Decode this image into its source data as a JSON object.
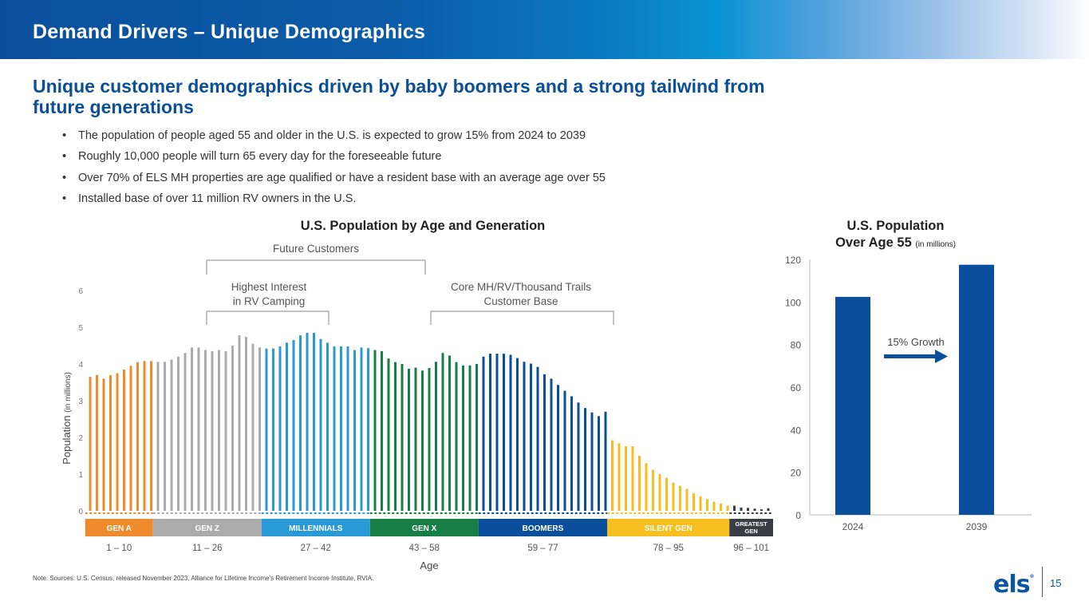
{
  "header": {
    "title": "Demand Drivers – Unique Demographics"
  },
  "subtitle": "Unique customer demographics driven by baby boomers and a strong tailwind from future generations",
  "bullets": [
    "The population of people aged 55 and older in the U.S. is expected to grow 15% from 2024 to 2039",
    "Roughly 10,000 people will turn 65 every day for the foreseeable future",
    "Over 70% of ELS MH properties are age qualified or have a resident base with an average age over 55",
    "Installed base of over 11 million RV owners in the U.S."
  ],
  "note": "Note: Sources: U.S. Census, released November 2023, Alliance for Lifetime Income's Retirement Income Institute, RVIA.",
  "footer": {
    "logo": "els",
    "logo_mark": "®",
    "page_number": "15"
  },
  "chart_data": [
    {
      "type": "bar",
      "title": "U.S. Population by Age and Generation",
      "xlabel": "Age",
      "ylabel": "Population",
      "ylabel_unit": "(in millions)",
      "ylim": [
        0,
        6
      ],
      "yticks": [
        "0",
        "1",
        "2",
        "3",
        "4",
        "5",
        "6"
      ],
      "grid": false,
      "annotations": [
        {
          "label": "Future Customers",
          "from_age": 19,
          "to_age": 51
        },
        {
          "label_line1": "Highest Interest",
          "label_line2": "in RV Camping",
          "from_age": 19,
          "to_age": 37
        },
        {
          "label_line1": "Core MH/RV/Thousand Trails",
          "label_line2": "Customer Base",
          "from_age": 52,
          "to_age": 78
        }
      ],
      "generations": [
        {
          "name": "GEN A",
          "range": "1 – 10",
          "start": 1,
          "end": 10,
          "color": "#ef8b2c",
          "text_color": "#ffffff"
        },
        {
          "name": "GEN Z",
          "range": "11 – 26",
          "start": 11,
          "end": 26,
          "color": "#ababab",
          "text_color": "#ffffff"
        },
        {
          "name": "MILLENNIALS",
          "range": "27 – 42",
          "start": 27,
          "end": 42,
          "color": "#2a9ad6",
          "text_color": "#ffffff"
        },
        {
          "name": "GEN X",
          "range": "43 – 58",
          "start": 43,
          "end": 58,
          "color": "#177f45",
          "text_color": "#ffffff"
        },
        {
          "name": "BOOMERS",
          "range": "59 – 77",
          "start": 59,
          "end": 77,
          "color": "#0b4f9c",
          "text_color": "#ffffff"
        },
        {
          "name": "SILENT GEN",
          "range": "78 – 95",
          "start": 78,
          "end": 95,
          "color": "#f6be1e",
          "text_color": "#ffffff"
        },
        {
          "name": "GREATEST GEN",
          "name_line1": "GREATEST",
          "name_line2": "GEN",
          "range": "96 – 101",
          "start": 96,
          "end": 101,
          "color": "#3a3d46",
          "text_color": "#ffffff"
        }
      ],
      "ages": [
        1,
        2,
        3,
        4,
        5,
        6,
        7,
        8,
        9,
        10,
        11,
        12,
        13,
        14,
        15,
        16,
        17,
        18,
        19,
        20,
        21,
        22,
        23,
        24,
        25,
        26,
        27,
        28,
        29,
        30,
        31,
        32,
        33,
        34,
        35,
        36,
        37,
        38,
        39,
        40,
        41,
        42,
        43,
        44,
        45,
        46,
        47,
        48,
        49,
        50,
        51,
        52,
        53,
        54,
        55,
        56,
        57,
        58,
        59,
        60,
        61,
        62,
        63,
        64,
        65,
        66,
        67,
        68,
        69,
        70,
        71,
        72,
        73,
        74,
        75,
        76,
        77,
        78,
        79,
        80,
        81,
        82,
        83,
        84,
        85,
        86,
        87,
        88,
        89,
        90,
        91,
        92,
        93,
        94,
        95,
        96,
        97,
        98,
        99,
        100,
        101
      ],
      "values": [
        3.65,
        3.7,
        3.6,
        3.7,
        3.75,
        3.85,
        3.95,
        4.05,
        4.08,
        4.08,
        4.06,
        4.06,
        4.12,
        4.2,
        4.3,
        4.45,
        4.45,
        4.38,
        4.35,
        4.38,
        4.35,
        4.5,
        4.78,
        4.74,
        4.55,
        4.45,
        4.42,
        4.42,
        4.48,
        4.58,
        4.65,
        4.78,
        4.85,
        4.85,
        4.68,
        4.58,
        4.48,
        4.48,
        4.48,
        4.38,
        4.45,
        4.43,
        4.38,
        4.35,
        4.15,
        4.05,
        4.0,
        3.87,
        3.9,
        3.82,
        3.89,
        4.06,
        4.3,
        4.23,
        4.05,
        3.96,
        3.96,
        4.0,
        4.2,
        4.28,
        4.28,
        4.28,
        4.25,
        4.16,
        4.06,
        4.01,
        3.92,
        3.72,
        3.6,
        3.43,
        3.27,
        3.12,
        2.95,
        2.8,
        2.68,
        2.58,
        2.7,
        1.92,
        1.84,
        1.76,
        1.76,
        1.5,
        1.3,
        1.12,
        1.0,
        0.9,
        0.77,
        0.68,
        0.6,
        0.48,
        0.4,
        0.32,
        0.25,
        0.2,
        0.14,
        0.14,
        0.09,
        0.08,
        0.06,
        0.04,
        0.07
      ]
    },
    {
      "type": "bar",
      "title_line1": "U.S. Population",
      "title_line2": "Over Age 55",
      "title_unit": "(in millions)",
      "categories": [
        "2024",
        "2039"
      ],
      "values": [
        102.4,
        117.5
      ],
      "ylim": [
        0,
        120
      ],
      "yticks": [
        "0",
        "20",
        "40",
        "60",
        "80",
        "100",
        "120"
      ],
      "bar_color": "#0b4f9c",
      "annotation": "15% Growth",
      "grid": false
    }
  ]
}
